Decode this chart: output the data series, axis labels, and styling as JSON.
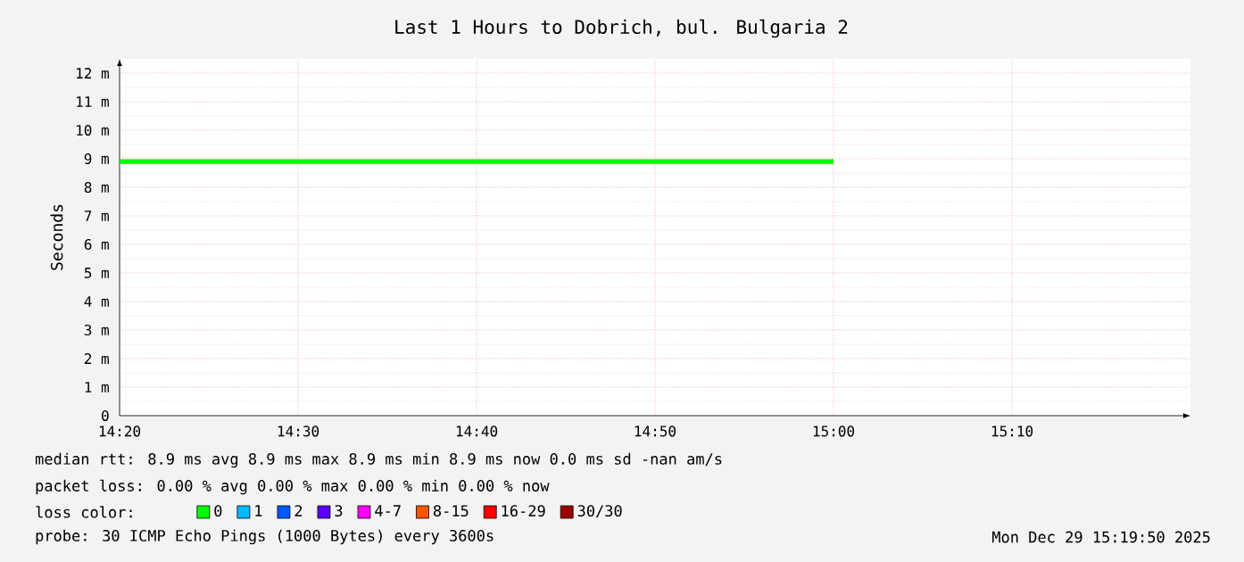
{
  "chart_data": {
    "type": "line",
    "title": "Last 1 Hours to Dobrich, bul. Bulgaria 2",
    "ylabel": "Seconds",
    "x": [
      14.3333,
      15.0
    ],
    "series": [
      {
        "name": "0",
        "color": "#00ff00",
        "values": [
          8.9,
          8.9
        ]
      },
      {
        "name": "1",
        "color": "#00bbff",
        "values": [
          null,
          null
        ]
      },
      {
        "name": "2",
        "color": "#0059ff",
        "values": [
          null,
          null
        ]
      },
      {
        "name": "3",
        "color": "#5e00ff",
        "values": [
          null,
          null
        ]
      },
      {
        "name": "4-7",
        "color": "#ff00ff",
        "values": [
          null,
          null
        ]
      },
      {
        "name": "8-15",
        "color": "#ff5500",
        "values": [
          null,
          null
        ]
      },
      {
        "name": "16-29",
        "color": "#ff0000",
        "values": [
          null,
          null
        ]
      },
      {
        "name": "30/30",
        "color": "#a10000",
        "values": [
          null,
          null
        ]
      }
    ],
    "xlim": [
      14.3333,
      15.3333
    ],
    "xticks": [
      {
        "value": 14.3333,
        "label": "14:20"
      },
      {
        "value": 14.5,
        "label": "14:30"
      },
      {
        "value": 14.6667,
        "label": "14:40"
      },
      {
        "value": 14.8333,
        "label": "14:50"
      },
      {
        "value": 15.0,
        "label": "15:00"
      },
      {
        "value": 15.1667,
        "label": "15:10"
      }
    ],
    "ylim": [
      0,
      12.5
    ],
    "yticks": [
      0,
      {
        "value": 1,
        "label": "1 m"
      },
      {
        "value": 2,
        "label": "2 m"
      },
      {
        "value": 3,
        "label": "3 m"
      },
      {
        "value": 4,
        "label": "4 m"
      },
      {
        "value": 5,
        "label": "5 m"
      },
      {
        "value": 6,
        "label": "6 m"
      },
      {
        "value": 7,
        "label": "7 m"
      },
      {
        "value": 8,
        "label": "8 m"
      },
      {
        "value": 9,
        "label": "9 m"
      },
      {
        "value": 10,
        "label": "10 m"
      },
      {
        "value": 11,
        "label": "11 m"
      },
      {
        "value": 12,
        "label": "12 m"
      }
    ],
    "grid": true,
    "legend": "bottom",
    "marker": "none",
    "line_style": "solid",
    "annotations": [
      "median rtt:  8.9 ms avg  8.9 ms max  8.9 ms min  8.9 ms now  0.0 ms sd  -nan   am/s",
      "packet loss: 0.00 % avg  0.00 % max  0.00 % min  0.00 % now",
      "loss color:",
      "probe:       30 ICMP Echo Pings (1000 Bytes) every 3600s",
      "Mon Dec 29 15:19:50 2025"
    ]
  }
}
